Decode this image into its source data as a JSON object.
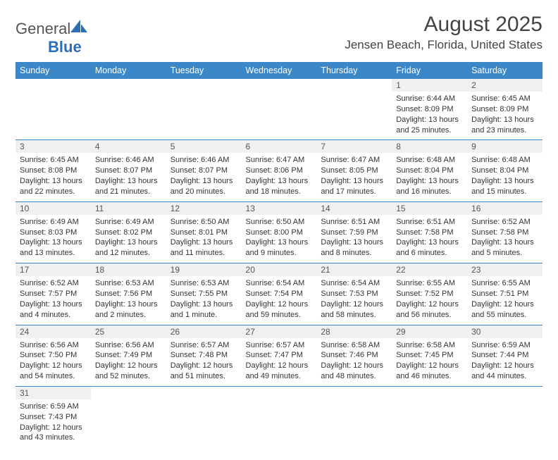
{
  "brand": {
    "name_a": "General",
    "name_b": "Blue"
  },
  "title": "August 2025",
  "location": "Jensen Beach, Florida, United States",
  "colors": {
    "header_bg": "#3b87c8",
    "row_rule": "#3b87c8",
    "daynum_bg": "#eef0f1"
  },
  "dow": [
    "Sunday",
    "Monday",
    "Tuesday",
    "Wednesday",
    "Thursday",
    "Friday",
    "Saturday"
  ],
  "weeks": [
    [
      null,
      null,
      null,
      null,
      null,
      {
        "n": "1",
        "sunrise": "Sunrise: 6:44 AM",
        "sunset": "Sunset: 8:09 PM",
        "daylight1": "Daylight: 13 hours",
        "daylight2": "and 25 minutes."
      },
      {
        "n": "2",
        "sunrise": "Sunrise: 6:45 AM",
        "sunset": "Sunset: 8:09 PM",
        "daylight1": "Daylight: 13 hours",
        "daylight2": "and 23 minutes."
      }
    ],
    [
      {
        "n": "3",
        "sunrise": "Sunrise: 6:45 AM",
        "sunset": "Sunset: 8:08 PM",
        "daylight1": "Daylight: 13 hours",
        "daylight2": "and 22 minutes."
      },
      {
        "n": "4",
        "sunrise": "Sunrise: 6:46 AM",
        "sunset": "Sunset: 8:07 PM",
        "daylight1": "Daylight: 13 hours",
        "daylight2": "and 21 minutes."
      },
      {
        "n": "5",
        "sunrise": "Sunrise: 6:46 AM",
        "sunset": "Sunset: 8:07 PM",
        "daylight1": "Daylight: 13 hours",
        "daylight2": "and 20 minutes."
      },
      {
        "n": "6",
        "sunrise": "Sunrise: 6:47 AM",
        "sunset": "Sunset: 8:06 PM",
        "daylight1": "Daylight: 13 hours",
        "daylight2": "and 18 minutes."
      },
      {
        "n": "7",
        "sunrise": "Sunrise: 6:47 AM",
        "sunset": "Sunset: 8:05 PM",
        "daylight1": "Daylight: 13 hours",
        "daylight2": "and 17 minutes."
      },
      {
        "n": "8",
        "sunrise": "Sunrise: 6:48 AM",
        "sunset": "Sunset: 8:04 PM",
        "daylight1": "Daylight: 13 hours",
        "daylight2": "and 16 minutes."
      },
      {
        "n": "9",
        "sunrise": "Sunrise: 6:48 AM",
        "sunset": "Sunset: 8:04 PM",
        "daylight1": "Daylight: 13 hours",
        "daylight2": "and 15 minutes."
      }
    ],
    [
      {
        "n": "10",
        "sunrise": "Sunrise: 6:49 AM",
        "sunset": "Sunset: 8:03 PM",
        "daylight1": "Daylight: 13 hours",
        "daylight2": "and 13 minutes."
      },
      {
        "n": "11",
        "sunrise": "Sunrise: 6:49 AM",
        "sunset": "Sunset: 8:02 PM",
        "daylight1": "Daylight: 13 hours",
        "daylight2": "and 12 minutes."
      },
      {
        "n": "12",
        "sunrise": "Sunrise: 6:50 AM",
        "sunset": "Sunset: 8:01 PM",
        "daylight1": "Daylight: 13 hours",
        "daylight2": "and 11 minutes."
      },
      {
        "n": "13",
        "sunrise": "Sunrise: 6:50 AM",
        "sunset": "Sunset: 8:00 PM",
        "daylight1": "Daylight: 13 hours",
        "daylight2": "and 9 minutes."
      },
      {
        "n": "14",
        "sunrise": "Sunrise: 6:51 AM",
        "sunset": "Sunset: 7:59 PM",
        "daylight1": "Daylight: 13 hours",
        "daylight2": "and 8 minutes."
      },
      {
        "n": "15",
        "sunrise": "Sunrise: 6:51 AM",
        "sunset": "Sunset: 7:58 PM",
        "daylight1": "Daylight: 13 hours",
        "daylight2": "and 6 minutes."
      },
      {
        "n": "16",
        "sunrise": "Sunrise: 6:52 AM",
        "sunset": "Sunset: 7:58 PM",
        "daylight1": "Daylight: 13 hours",
        "daylight2": "and 5 minutes."
      }
    ],
    [
      {
        "n": "17",
        "sunrise": "Sunrise: 6:52 AM",
        "sunset": "Sunset: 7:57 PM",
        "daylight1": "Daylight: 13 hours",
        "daylight2": "and 4 minutes."
      },
      {
        "n": "18",
        "sunrise": "Sunrise: 6:53 AM",
        "sunset": "Sunset: 7:56 PM",
        "daylight1": "Daylight: 13 hours",
        "daylight2": "and 2 minutes."
      },
      {
        "n": "19",
        "sunrise": "Sunrise: 6:53 AM",
        "sunset": "Sunset: 7:55 PM",
        "daylight1": "Daylight: 13 hours",
        "daylight2": "and 1 minute."
      },
      {
        "n": "20",
        "sunrise": "Sunrise: 6:54 AM",
        "sunset": "Sunset: 7:54 PM",
        "daylight1": "Daylight: 12 hours",
        "daylight2": "and 59 minutes."
      },
      {
        "n": "21",
        "sunrise": "Sunrise: 6:54 AM",
        "sunset": "Sunset: 7:53 PM",
        "daylight1": "Daylight: 12 hours",
        "daylight2": "and 58 minutes."
      },
      {
        "n": "22",
        "sunrise": "Sunrise: 6:55 AM",
        "sunset": "Sunset: 7:52 PM",
        "daylight1": "Daylight: 12 hours",
        "daylight2": "and 56 minutes."
      },
      {
        "n": "23",
        "sunrise": "Sunrise: 6:55 AM",
        "sunset": "Sunset: 7:51 PM",
        "daylight1": "Daylight: 12 hours",
        "daylight2": "and 55 minutes."
      }
    ],
    [
      {
        "n": "24",
        "sunrise": "Sunrise: 6:56 AM",
        "sunset": "Sunset: 7:50 PM",
        "daylight1": "Daylight: 12 hours",
        "daylight2": "and 54 minutes."
      },
      {
        "n": "25",
        "sunrise": "Sunrise: 6:56 AM",
        "sunset": "Sunset: 7:49 PM",
        "daylight1": "Daylight: 12 hours",
        "daylight2": "and 52 minutes."
      },
      {
        "n": "26",
        "sunrise": "Sunrise: 6:57 AM",
        "sunset": "Sunset: 7:48 PM",
        "daylight1": "Daylight: 12 hours",
        "daylight2": "and 51 minutes."
      },
      {
        "n": "27",
        "sunrise": "Sunrise: 6:57 AM",
        "sunset": "Sunset: 7:47 PM",
        "daylight1": "Daylight: 12 hours",
        "daylight2": "and 49 minutes."
      },
      {
        "n": "28",
        "sunrise": "Sunrise: 6:58 AM",
        "sunset": "Sunset: 7:46 PM",
        "daylight1": "Daylight: 12 hours",
        "daylight2": "and 48 minutes."
      },
      {
        "n": "29",
        "sunrise": "Sunrise: 6:58 AM",
        "sunset": "Sunset: 7:45 PM",
        "daylight1": "Daylight: 12 hours",
        "daylight2": "and 46 minutes."
      },
      {
        "n": "30",
        "sunrise": "Sunrise: 6:59 AM",
        "sunset": "Sunset: 7:44 PM",
        "daylight1": "Daylight: 12 hours",
        "daylight2": "and 44 minutes."
      }
    ],
    [
      {
        "n": "31",
        "sunrise": "Sunrise: 6:59 AM",
        "sunset": "Sunset: 7:43 PM",
        "daylight1": "Daylight: 12 hours",
        "daylight2": "and 43 minutes."
      },
      null,
      null,
      null,
      null,
      null,
      null
    ]
  ]
}
